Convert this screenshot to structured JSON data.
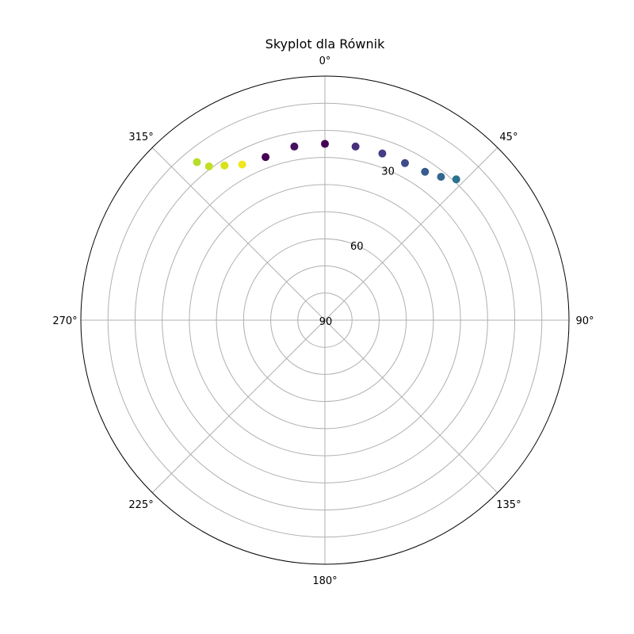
{
  "chart_data": {
    "type": "scatter",
    "projection": "polar",
    "title": "Skyplot dla Równik",
    "theta_zero": "N",
    "theta_direction": "clockwise",
    "r_axis": {
      "inverted": true,
      "lim": [
        90,
        0
      ],
      "tick_labels": [
        "30",
        "60",
        "90"
      ],
      "tick_values": [
        30,
        60,
        90
      ],
      "grid_step": 10
    },
    "theta_ticks": [
      {
        "deg": 0,
        "label": "0°"
      },
      {
        "deg": 45,
        "label": "45°"
      },
      {
        "deg": 90,
        "label": "90°"
      },
      {
        "deg": 135,
        "label": "135°"
      },
      {
        "deg": 180,
        "label": "180°"
      },
      {
        "deg": 225,
        "label": "225°"
      },
      {
        "deg": 270,
        "label": "270°"
      },
      {
        "deg": 315,
        "label": "315°"
      }
    ],
    "colormap": "viridis",
    "grid": true,
    "points": [
      {
        "azimuth": 360,
        "elevation": 25,
        "color": "#440154"
      },
      {
        "azimuth": 350,
        "elevation": 25,
        "color": "#47105f"
      },
      {
        "azimuth": 340,
        "elevation": 26,
        "color": "#440154"
      },
      {
        "azimuth": 332,
        "elevation": 25,
        "color": "#f1e51d"
      },
      {
        "azimuth": 327,
        "elevation": 22,
        "color": "#d8e219"
      },
      {
        "azimuth": 323,
        "elevation": 19,
        "color": "#c1df24"
      },
      {
        "azimuth": 321,
        "elevation": 15,
        "color": "#b5de2b"
      },
      {
        "azimuth": 10,
        "elevation": 25,
        "color": "#46307e"
      },
      {
        "azimuth": 19,
        "elevation": 25,
        "color": "#433e85"
      },
      {
        "azimuth": 27,
        "elevation": 25,
        "color": "#3d4d8a"
      },
      {
        "azimuth": 34,
        "elevation": 24,
        "color": "#365c8d"
      },
      {
        "azimuth": 39,
        "elevation": 22,
        "color": "#31688e"
      },
      {
        "azimuth": 43,
        "elevation": 19,
        "color": "#2c728e"
      }
    ]
  }
}
